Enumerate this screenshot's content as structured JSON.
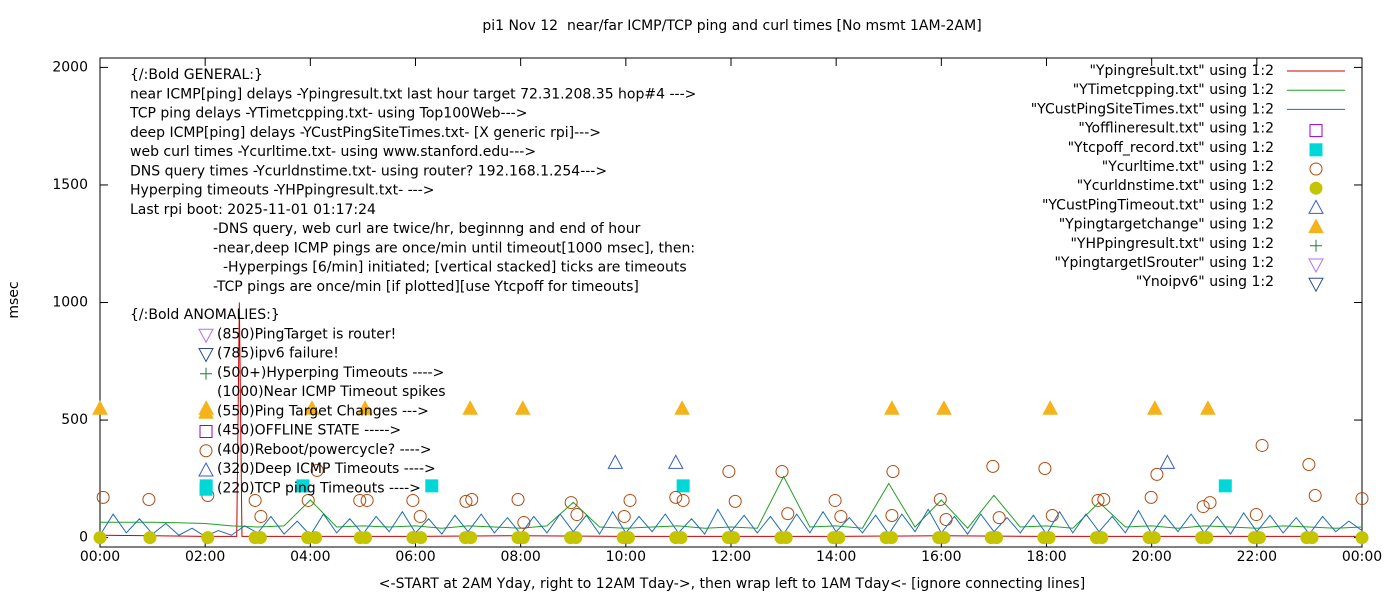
{
  "chart_data": {
    "type": "line",
    "title": "pi1 Nov 12  near/far ICMP/TCP ping and curl times [No msmt 1AM-2AM]",
    "xlabel": "<-START at 2AM Yday, right to 12AM Tday->, then wrap left to 1AM Tday<- [ignore connecting lines]",
    "ylabel": "msec",
    "xlim": [
      0,
      24
    ],
    "ylim": [
      -40,
      2040
    ],
    "xticks": [
      {
        "value": 0,
        "label": "00:00"
      },
      {
        "value": 2,
        "label": "02:00"
      },
      {
        "value": 4,
        "label": "04:00"
      },
      {
        "value": 6,
        "label": "06:00"
      },
      {
        "value": 8,
        "label": "08:00"
      },
      {
        "value": 10,
        "label": "10:00"
      },
      {
        "value": 12,
        "label": "12:00"
      },
      {
        "value": 14,
        "label": "14:00"
      },
      {
        "value": 16,
        "label": "16:00"
      },
      {
        "value": 18,
        "label": "18:00"
      },
      {
        "value": 20,
        "label": "20:00"
      },
      {
        "value": 22,
        "label": "22:00"
      },
      {
        "value": 24,
        "label": "00:00"
      }
    ],
    "yticks": [
      0,
      500,
      1000,
      1500,
      2000
    ],
    "legend": "top-right",
    "general_notes": [
      "{/:Bold GENERAL:}",
      "near ICMP[ping] delays -Ypingresult.txt last hour target 72.31.208.35 hop#4 --->",
      "TCP ping delays -YTimetcpping.txt- using Top100Web--->",
      "deep ICMP[ping] delays -YCustPingSiteTimes.txt- [X generic rpi]--->",
      "web curl times -Ycurltime.txt- using www.stanford.edu--->",
      "DNS query times -Ycurldnstime.txt- using router? 192.168.1.254--->",
      "Hyperping timeouts -YHPpingresult.txt- --->",
      "Last rpi boot: 2025-11-01 01:17:24",
      "-DNS query, web curl are twice/hr, beginnng and end of hour",
      "-near,deep ICMP pings are once/min until timeout[1000 msec], then:",
      "-Hyperpings [6/min] initiated; [vertical stacked] ticks are timeouts",
      "-TCP pings are once/min [if plotted][use Ytcpoff for timeouts]"
    ],
    "anomaly_notes": [
      "{/:Bold ANOMALIES:}",
      "(850)PingTarget is router!",
      "(785)ipv6 failure!",
      "(500+)Hyperping Timeouts ---->",
      "(1000)Near ICMP Timeout spikes",
      "(550)Ping Target Changes --->",
      "(450)OFFLINE STATE ----->",
      "(400)Reboot/powercycle? ---->",
      "(320)Deep ICMP Timeouts ---->",
      "(220)TCP ping Timeouts ---->"
    ],
    "series": [
      {
        "name": "\"Ypingresult.txt\" using 1:2",
        "color": "#cc0000",
        "marker": "line",
        "x": [
          0,
          1,
          2,
          2.6,
          2.65,
          2.7,
          4,
          6,
          8,
          10,
          12,
          14,
          16,
          18,
          20,
          22,
          24
        ],
        "values": [
          10,
          8,
          5,
          5,
          1000,
          5,
          5,
          5,
          8,
          5,
          5,
          5,
          8,
          5,
          5,
          5,
          5
        ]
      },
      {
        "name": "\"YTimetcpping.txt\" using 1:2",
        "color": "#22a022",
        "marker": "line",
        "x": [
          0,
          0.5,
          1,
          1.5,
          2,
          2.5,
          3,
          3.5,
          4,
          4.5,
          5,
          5.5,
          6,
          6.5,
          7,
          7.5,
          8,
          8.5,
          9,
          9.5,
          10,
          10.5,
          11,
          11.5,
          12,
          12.5,
          13,
          13.5,
          14,
          14.5,
          15,
          15.5,
          16,
          16.5,
          17,
          17.5,
          18,
          18.5,
          19,
          19.5,
          20,
          20.5,
          21,
          21.5,
          22,
          22.5,
          23,
          23.5,
          24
        ],
        "values": [
          65,
          65,
          65,
          63,
          60,
          50,
          45,
          50,
          160,
          45,
          50,
          45,
          50,
          40,
          50,
          45,
          40,
          50,
          150,
          45,
          40,
          45,
          50,
          40,
          45,
          40,
          260,
          45,
          50,
          40,
          230,
          45,
          160,
          40,
          180,
          45,
          50,
          40,
          150,
          45,
          50,
          40,
          50,
          45,
          40,
          50,
          45,
          40,
          45
        ]
      },
      {
        "name": "\"YCustPingSiteTimes.txt\" using 1:2",
        "color": "#1f6fb4",
        "marker": "line",
        "x": [
          0,
          0.25,
          0.5,
          0.75,
          1,
          1.25,
          1.5,
          1.75,
          2,
          2.25,
          2.5,
          2.75,
          3,
          3.25,
          3.5,
          3.75,
          4,
          4.25,
          4.5,
          4.75,
          5,
          5.25,
          5.5,
          5.75,
          6,
          6.25,
          6.5,
          6.75,
          7,
          7.25,
          7.5,
          7.75,
          8,
          8.25,
          8.5,
          8.75,
          9,
          9.25,
          9.5,
          9.75,
          10,
          10.25,
          10.5,
          10.75,
          11,
          11.25,
          11.5,
          11.75,
          12,
          12.25,
          12.5,
          12.75,
          13,
          13.25,
          13.5,
          13.75,
          14,
          14.25,
          14.5,
          14.75,
          15,
          15.25,
          15.5,
          15.75,
          16,
          16.25,
          16.5,
          16.75,
          17,
          17.25,
          17.5,
          17.75,
          18,
          18.25,
          18.5,
          18.75,
          19,
          19.25,
          19.5,
          19.75,
          20,
          20.25,
          20.5,
          20.75,
          21,
          21.25,
          21.5,
          21.75,
          22,
          22.25,
          22.5,
          22.75,
          23,
          23.25,
          23.5,
          23.75,
          24
        ],
        "values": [
          10,
          100,
          20,
          80,
          15,
          60,
          10,
          40,
          5,
          30,
          10,
          50,
          20,
          90,
          15,
          70,
          10,
          100,
          20,
          80,
          15,
          90,
          25,
          110,
          20,
          80,
          15,
          95,
          25,
          100,
          20,
          85,
          15,
          90,
          20,
          100,
          25,
          95,
          15,
          110,
          20,
          90,
          25,
          100,
          20,
          80,
          15,
          120,
          25,
          95,
          20,
          90,
          15,
          100,
          20,
          110,
          25,
          85,
          20,
          95,
          15,
          100,
          25,
          120,
          20,
          90,
          15,
          100,
          25,
          85,
          20,
          95,
          15,
          110,
          20,
          100,
          25,
          90,
          20,
          115,
          15,
          95,
          25,
          100,
          20,
          90,
          15,
          105,
          25,
          95,
          20,
          85,
          15,
          90,
          25,
          70,
          30
        ]
      },
      {
        "name": "\"Yofflineresult.txt\" using 1:2",
        "color": "#9400d3",
        "marker": "square-open",
        "x": [],
        "values": []
      },
      {
        "name": "\"Ytcpoff_record.txt\" using 1:2",
        "color": "#00d8d8",
        "marker": "square-filled",
        "x": [
          2.02,
          3.86,
          6.31,
          11.09,
          21.4
        ],
        "values": [
          220,
          220,
          220,
          220,
          220
        ]
      },
      {
        "name": "\"Ycurltime.txt\" using 1:2",
        "color": "#b04a10",
        "marker": "circle-open",
        "x": [
          0.06,
          0.93,
          2.05,
          2.95,
          3.06,
          3.96,
          4.13,
          4.94,
          5.08,
          5.95,
          6.09,
          6.96,
          7.07,
          7.95,
          8.06,
          8.96,
          9.07,
          9.97,
          10.08,
          10.95,
          11.09,
          11.96,
          12.08,
          12.97,
          13.08,
          13.98,
          14.09,
          15.06,
          15.08,
          15.98,
          16.09,
          16.98,
          17.1,
          17.97,
          18.11,
          18.98,
          19.09,
          19.99,
          20.1,
          20.98,
          21.11,
          21.99,
          22.1,
          22.99,
          23.11,
          24
        ],
        "values": [
          171,
          162,
          179,
          158,
          90,
          158,
          286,
          158,
          158,
          158,
          90,
          154,
          162,
          162,
          64,
          149,
          98,
          90,
          158,
          171,
          158,
          281,
          154,
          281,
          102,
          158,
          90,
          94,
          281,
          162,
          77,
          303,
          85,
          294,
          94,
          158,
          162,
          171,
          269,
          132,
          149,
          98,
          392,
          311,
          179,
          166
        ]
      },
      {
        "name": "\"Ycurldnstime.txt\" using 1:2",
        "color": "#c4c400",
        "marker": "circle-filled",
        "x": [
          0,
          0.95,
          2.05,
          2.95,
          3.05,
          3.95,
          4.1,
          4.95,
          5.05,
          5.95,
          6.1,
          6.95,
          7.05,
          7.95,
          8.05,
          8.95,
          9.05,
          9.95,
          10.05,
          10.95,
          11.05,
          11.95,
          12.05,
          12.95,
          13.05,
          13.95,
          14.05,
          14.95,
          15.05,
          15.95,
          16.05,
          16.95,
          17.05,
          17.95,
          18.05,
          18.95,
          19.05,
          19.95,
          20.05,
          20.95,
          21.05,
          21.95,
          22.05,
          22.95,
          23.05,
          24
        ],
        "values": [
          0,
          0,
          0,
          0,
          0,
          0,
          0,
          0,
          0,
          0,
          0,
          0,
          0,
          0,
          0,
          0,
          0,
          0,
          0,
          0,
          0,
          0,
          0,
          0,
          0,
          0,
          0,
          0,
          0,
          0,
          0,
          0,
          0,
          0,
          0,
          0,
          0,
          0,
          0,
          0,
          0,
          0,
          0,
          0,
          0,
          0
        ]
      },
      {
        "name": "\"YCustPingTimeout.txt\" using 1:2",
        "color": "#3a5fc8",
        "marker": "triangle-open",
        "x": [
          9.8,
          10.95,
          20.3
        ],
        "values": [
          320,
          320,
          320
        ]
      },
      {
        "name": "\"Ypingtargetchange\" using 1:2",
        "color": "#f5b21a",
        "marker": "triangle-filled",
        "x": [
          0,
          2.02,
          4.03,
          5.04,
          7.04,
          8.04,
          11.07,
          15.06,
          16.05,
          18.07,
          20.06,
          21.07
        ],
        "values": [
          550,
          550,
          550,
          550,
          550,
          550,
          550,
          550,
          550,
          550,
          550,
          550
        ]
      },
      {
        "name": "\"YHPpingresult.txt\" using 1:2",
        "color": "#1e7a3c",
        "marker": "plus",
        "x": [],
        "values": []
      },
      {
        "name": "\"YpingtargetISrouter\" using 1:2",
        "color": "#b070f0",
        "marker": "triangle-down-open",
        "x": [],
        "values": []
      },
      {
        "name": "\"Ynoipv6\" using 1:2",
        "color": "#2a4c8c",
        "marker": "triangle-down-open",
        "x": [],
        "values": []
      }
    ]
  }
}
